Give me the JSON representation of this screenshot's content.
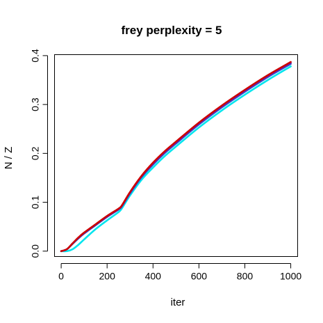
{
  "chart_data": {
    "type": "line",
    "title": "frey perplexity = 5",
    "xlabel": "iter",
    "ylabel": "N / Z",
    "xlim": [
      -29,
      1030
    ],
    "ylim": [
      -0.011,
      0.402
    ],
    "xticks": [
      0,
      200,
      400,
      600,
      800,
      1000
    ],
    "yticks": [
      0.0,
      0.1,
      0.2,
      0.3,
      0.4
    ],
    "xtick_labels": [
      "0",
      "200",
      "400",
      "600",
      "800",
      "1000"
    ],
    "ytick_labels": [
      "0.0",
      "0.1",
      "0.2",
      "0.3",
      "0.4"
    ],
    "grid": false,
    "legend": "none",
    "series": [
      {
        "color": "#00e5ee",
        "x": [
          0,
          25,
          50,
          75,
          100,
          150,
          200,
          250,
          265,
          300,
          350,
          400,
          450,
          500,
          600,
          700,
          800,
          900,
          1000
        ],
        "y": [
          0.0,
          0.0,
          0.004,
          0.013,
          0.024,
          0.045,
          0.063,
          0.08,
          0.088,
          0.114,
          0.146,
          0.171,
          0.194,
          0.214,
          0.253,
          0.288,
          0.32,
          0.35,
          0.378
        ]
      },
      {
        "color": "#2a5fd6",
        "x": [
          0,
          25,
          50,
          75,
          100,
          150,
          200,
          250,
          265,
          300,
          350,
          400,
          450,
          500,
          600,
          700,
          800,
          900,
          1000
        ],
        "y": [
          0.0,
          0.004,
          0.015,
          0.026,
          0.036,
          0.053,
          0.07,
          0.085,
          0.092,
          0.118,
          0.151,
          0.177,
          0.2,
          0.22,
          0.259,
          0.294,
          0.326,
          0.356,
          0.383
        ]
      },
      {
        "color": "#6a1ca8",
        "x": [
          0,
          25,
          50,
          75,
          100,
          150,
          200,
          250,
          265,
          300,
          350,
          400,
          450,
          500,
          600,
          700,
          800,
          900,
          1000
        ],
        "y": [
          0.0,
          0.004,
          0.016,
          0.027,
          0.037,
          0.054,
          0.071,
          0.086,
          0.093,
          0.12,
          0.153,
          0.179,
          0.202,
          0.222,
          0.261,
          0.296,
          0.328,
          0.358,
          0.385
        ]
      },
      {
        "color": "#cc0000",
        "x": [
          0,
          25,
          50,
          75,
          100,
          150,
          200,
          250,
          265,
          300,
          350,
          400,
          450,
          500,
          600,
          700,
          800,
          900,
          1000
        ],
        "y": [
          0.0,
          0.004,
          0.016,
          0.028,
          0.038,
          0.055,
          0.072,
          0.087,
          0.094,
          0.121,
          0.154,
          0.181,
          0.204,
          0.224,
          0.263,
          0.298,
          0.33,
          0.36,
          0.387
        ]
      }
    ]
  }
}
